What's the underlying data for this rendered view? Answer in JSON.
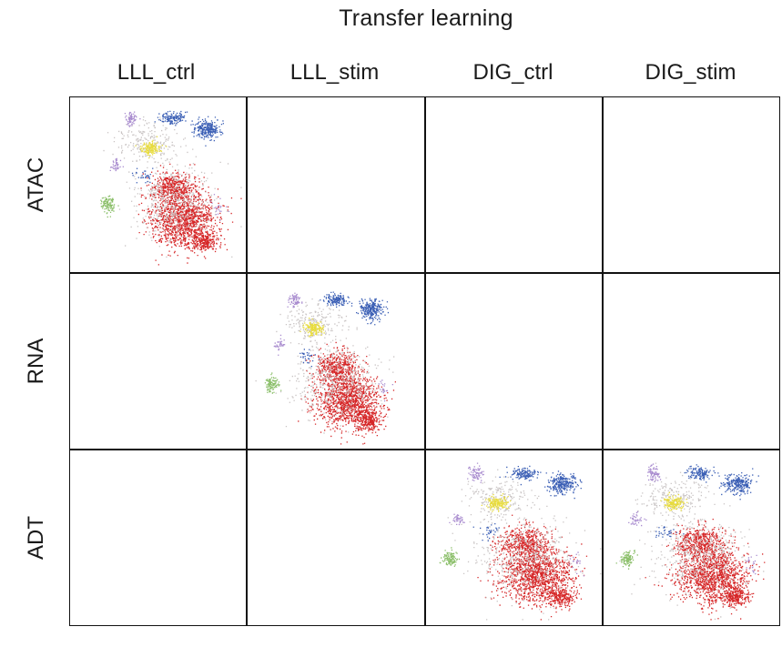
{
  "title": "Transfer learning",
  "columns": [
    "LLL_ctrl",
    "LLL_stim",
    "DIG_ctrl",
    "DIG_stim"
  ],
  "rows": [
    "ATAC",
    "RNA",
    "ADT"
  ],
  "filled_cells": [
    {
      "row": 0,
      "col": 0,
      "name": "umap-atac-lll-ctrl"
    },
    {
      "row": 1,
      "col": 1,
      "name": "umap-rna-lll-stim"
    },
    {
      "row": 2,
      "col": 2,
      "name": "umap-adt-dig-ctrl"
    },
    {
      "row": 2,
      "col": 3,
      "name": "umap-adt-dig-stim"
    }
  ],
  "colors": {
    "grid_line": "#111111",
    "cluster_red": "#d62728",
    "cluster_blue": "#3b5fb5",
    "cluster_yellow": "#e8dc3c",
    "cluster_green": "#8bbf6a",
    "cluster_purple": "#a98ccf",
    "cluster_grey": "#c9c4c4"
  }
}
